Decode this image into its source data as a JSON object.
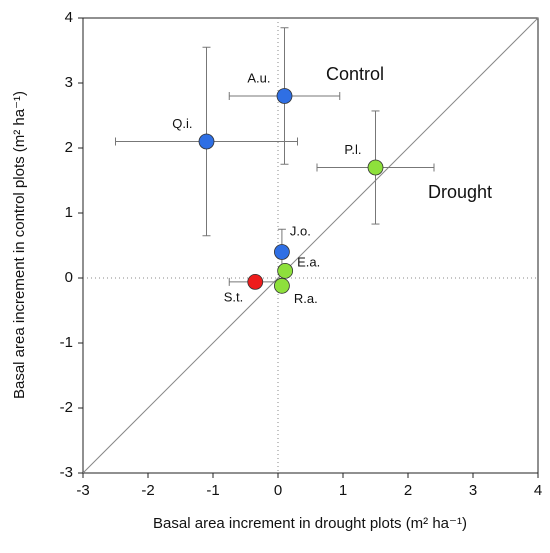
{
  "chart_data": {
    "type": "scatter",
    "xlabel": "Basal area increment in drought plots (m² ha⁻¹)",
    "ylabel": "Basal area increment in control plots (m² ha⁻¹)",
    "annotations": [
      "Control",
      "Drought"
    ],
    "labels": [
      "A.u.",
      "Q.i.",
      "P.l.",
      "J.o.",
      "E.a.",
      "R.a.",
      "S.t."
    ],
    "x": [
      0.1,
      -1.1,
      1.5,
      0.06,
      0.11,
      0.06,
      -0.35
    ],
    "y": [
      2.8,
      2.1,
      1.7,
      0.4,
      0.11,
      -0.12,
      -0.06
    ],
    "xerr": [
      0.85,
      1.4,
      0.9,
      null,
      null,
      null,
      0.4
    ],
    "yerr": [
      1.05,
      1.45,
      0.87,
      0.35,
      null,
      null,
      null
    ],
    "colors": [
      "#2f6fe4",
      "#2f6fe4",
      "#8ee03c",
      "#2f6fe4",
      "#8ee03c",
      "#8ee03c",
      "#ee1c1c"
    ],
    "xlim": [
      -3,
      4
    ],
    "ylim": [
      -3,
      4
    ],
    "xticks": [
      -3,
      -2,
      -1,
      0,
      1,
      2,
      3,
      4
    ],
    "yticks": [
      -3,
      -2,
      -1,
      0,
      1,
      2,
      3,
      4
    ]
  }
}
